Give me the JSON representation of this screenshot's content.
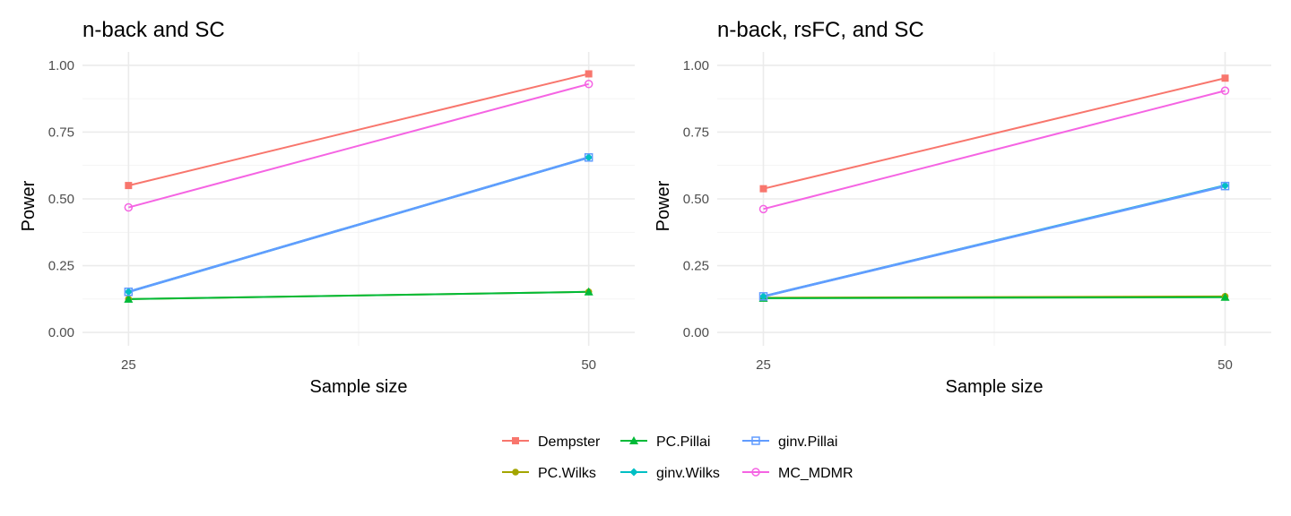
{
  "chart_data": [
    {
      "type": "line",
      "title": "n-back and SC",
      "xlabel": "Sample size",
      "ylabel": "Power",
      "x": [
        25,
        50
      ],
      "xlim": [
        22.5,
        52.5
      ],
      "ylim": [
        -0.05,
        1.05
      ],
      "yticks": [
        0.0,
        0.25,
        0.5,
        0.75,
        1.0
      ],
      "ytick_labels": [
        "0.00",
        "0.25",
        "0.50",
        "0.75",
        "1.00"
      ],
      "xticks": [
        25,
        50
      ],
      "xtick_labels": [
        "25",
        "50"
      ],
      "grid": true,
      "series": [
        {
          "name": "Dempster",
          "color": "#F8766D",
          "marker": "square-filled",
          "values": [
            0.55,
            0.968
          ]
        },
        {
          "name": "PC.Wilks",
          "color": "#A3A500",
          "marker": "circle-filled",
          "values": [
            0.125,
            0.152
          ]
        },
        {
          "name": "PC.Pillai",
          "color": "#00BA38",
          "marker": "triangle-filled",
          "values": [
            0.125,
            0.152
          ]
        },
        {
          "name": "ginv.Wilks",
          "color": "#00BFC4",
          "marker": "diamond-filled",
          "values": [
            0.152,
            0.655
          ]
        },
        {
          "name": "ginv.Pillai",
          "color": "#619CFF",
          "marker": "square-open",
          "values": [
            0.152,
            0.655
          ]
        },
        {
          "name": "MC_MDMR",
          "color": "#F564E3",
          "marker": "circle-open",
          "values": [
            0.468,
            0.93
          ]
        }
      ]
    },
    {
      "type": "line",
      "title": "n-back, rsFC, and SC",
      "xlabel": "Sample size",
      "ylabel": "Power",
      "x": [
        25,
        50
      ],
      "xlim": [
        22.5,
        52.5
      ],
      "ylim": [
        -0.05,
        1.05
      ],
      "yticks": [
        0.0,
        0.25,
        0.5,
        0.75,
        1.0
      ],
      "ytick_labels": [
        "0.00",
        "0.25",
        "0.50",
        "0.75",
        "1.00"
      ],
      "xticks": [
        25,
        50
      ],
      "xtick_labels": [
        "25",
        "50"
      ],
      "grid": true,
      "series": [
        {
          "name": "Dempster",
          "color": "#F8766D",
          "marker": "square-filled",
          "values": [
            0.538,
            0.952
          ]
        },
        {
          "name": "PC.Wilks",
          "color": "#A3A500",
          "marker": "circle-filled",
          "values": [
            0.13,
            0.135
          ]
        },
        {
          "name": "PC.Pillai",
          "color": "#00BA38",
          "marker": "triangle-filled",
          "values": [
            0.128,
            0.132
          ]
        },
        {
          "name": "ginv.Wilks",
          "color": "#00BFC4",
          "marker": "diamond-filled",
          "values": [
            0.135,
            0.55
          ]
        },
        {
          "name": "ginv.Pillai",
          "color": "#619CFF",
          "marker": "square-open",
          "values": [
            0.135,
            0.548
          ]
        },
        {
          "name": "MC_MDMR",
          "color": "#F564E3",
          "marker": "circle-open",
          "values": [
            0.462,
            0.905
          ]
        }
      ]
    }
  ],
  "legend": {
    "placement": "bottom",
    "rows": [
      [
        "Dempster",
        "PC.Pillai",
        "ginv.Pillai"
      ],
      [
        "PC.Wilks",
        "ginv.Wilks",
        "MC_MDMR"
      ]
    ]
  }
}
